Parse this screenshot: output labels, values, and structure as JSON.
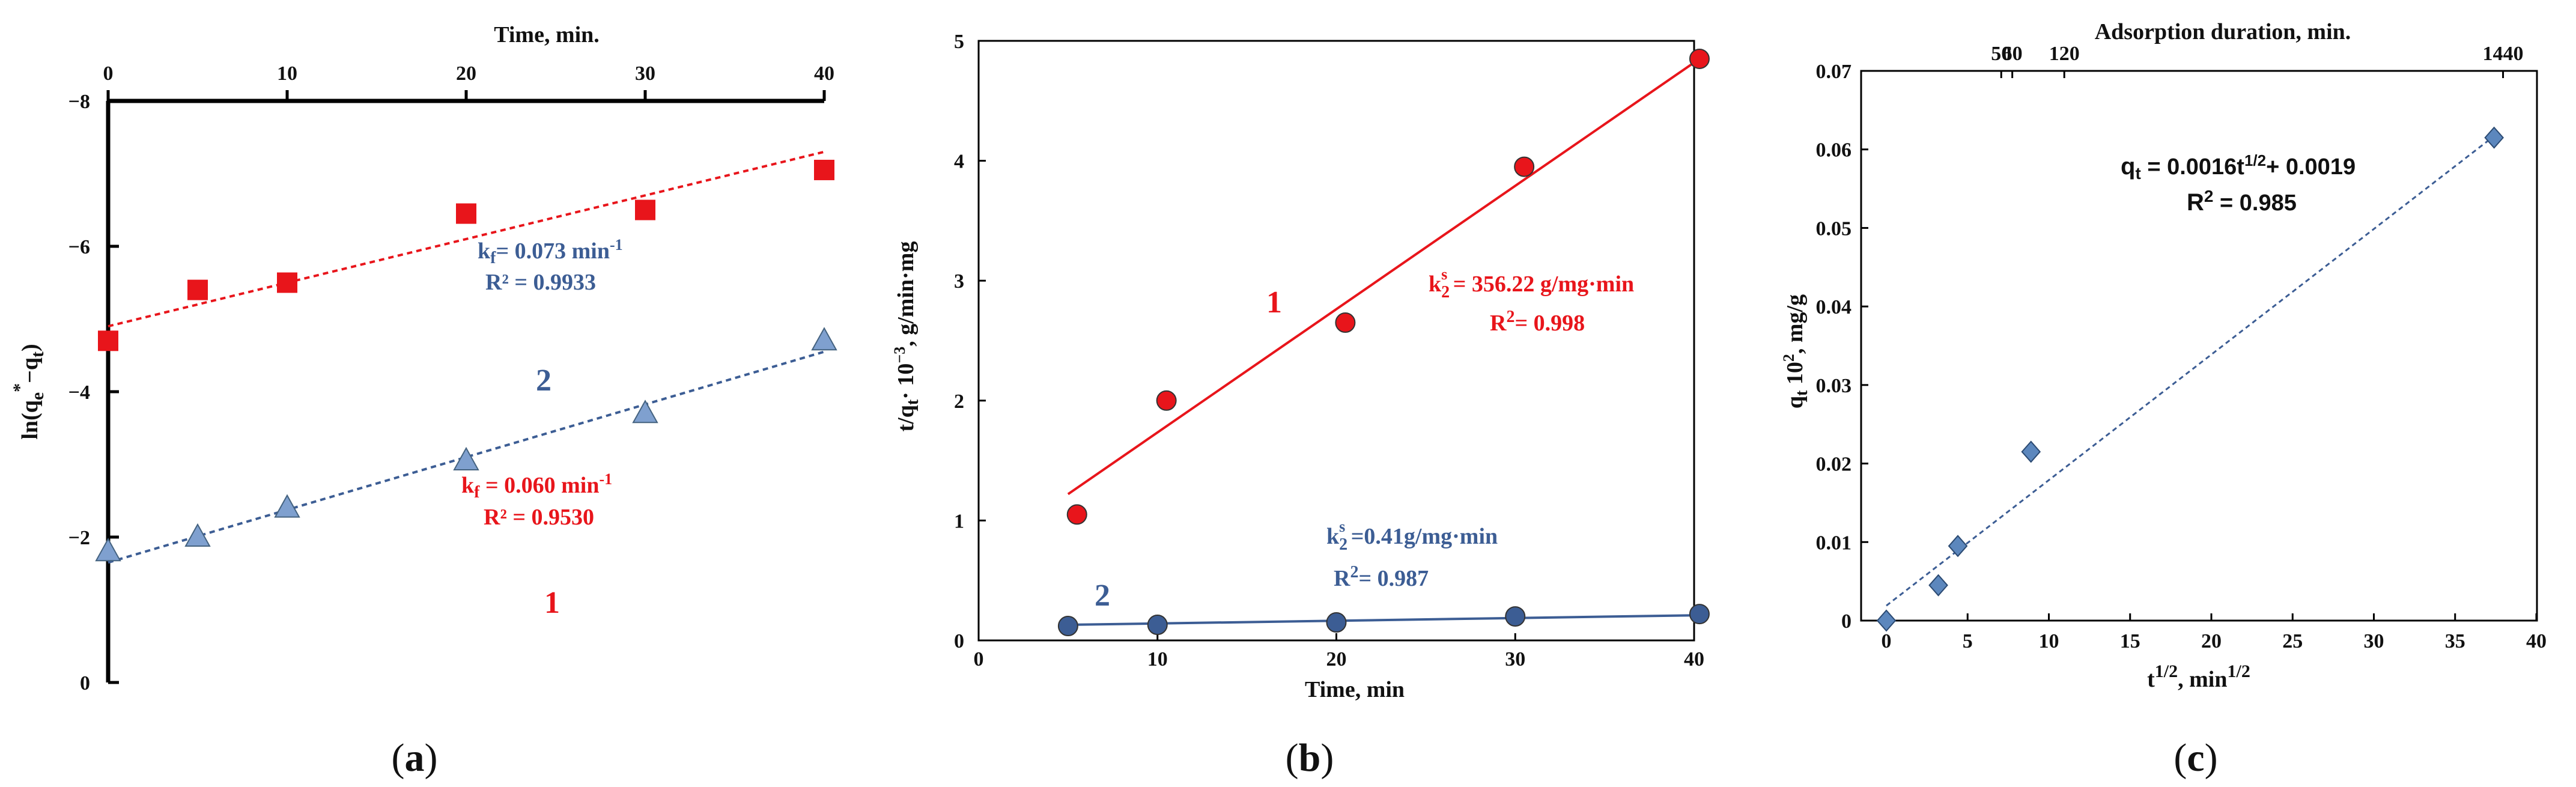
{
  "colors": {
    "red": "#e8151b",
    "blue": "#3c5d94",
    "lightblue": "#7fa0cf",
    "diamond": "#5c87bd",
    "axis": "#000000"
  },
  "chart_data": [
    {
      "panel": "(a)",
      "panel_letter": "a",
      "type": "scatter",
      "title": "",
      "x_top_label": "Time, min.",
      "ylabel_prefix": "ln(q",
      "ylabel_sub": "e",
      "ylabel_sup": "*",
      "ylabel_mid": "−q",
      "ylabel_sub2": "t",
      "ylabel_suffix": ")",
      "xlim": [
        0,
        40
      ],
      "ylim": [
        -8,
        0
      ],
      "x_ticks": [
        "0",
        "10",
        "20",
        "30",
        "40"
      ],
      "y_ticks": [
        "0",
        "−2",
        "−4",
        "−6",
        "−8"
      ],
      "series": [
        {
          "name": "1",
          "marker": "square",
          "x": [
            0,
            5,
            10,
            20,
            30,
            40
          ],
          "y": [
            -4.7,
            -5.4,
            -5.5,
            -6.45,
            -6.5,
            -7.05
          ],
          "fit": {
            "x": [
              0,
              40
            ],
            "y": [
              -4.9,
              -7.3
            ],
            "style": "dashed"
          },
          "label": "1",
          "annotation": {
            "k_prefix": "k",
            "k_sub": "f",
            "k_value": " = 0.060 min",
            "k_exp": "-1",
            "r2": "R² = 0.9530"
          }
        },
        {
          "name": "2",
          "marker": "triangle",
          "x": [
            0,
            5,
            10,
            20,
            30,
            40
          ],
          "y": [
            -1.8,
            -2.0,
            -2.4,
            -3.05,
            -3.7,
            -4.7
          ],
          "fit": {
            "x": [
              0,
              40
            ],
            "y": [
              -1.65,
              -4.55
            ],
            "style": "dashed"
          },
          "label": "2",
          "annotation": {
            "k_prefix": "k",
            "k_sub": "f",
            "k_value": "= 0.073 min",
            "k_exp": "-1",
            "r2": "R² = 0.9933"
          }
        }
      ]
    },
    {
      "panel": "(b)",
      "panel_letter": "b",
      "type": "scatter",
      "xlabel": "Time, min",
      "ylabel_prefix": "t/q",
      "ylabel_sub": "t",
      "ylabel_suffix": "· 10",
      "ylabel_sup": "−3",
      "ylabel_end": ", g/min·mg",
      "xlim": [
        0,
        40
      ],
      "ylim": [
        0,
        5
      ],
      "x_ticks": [
        "0",
        "10",
        "20",
        "30",
        "40"
      ],
      "y_ticks": [
        "0",
        "1",
        "2",
        "3",
        "4",
        "5"
      ],
      "series": [
        {
          "name": "1",
          "marker": "circle",
          "x": [
            5.5,
            10.5,
            20.5,
            30.5,
            40.3
          ],
          "y": [
            1.05,
            2.0,
            2.65,
            3.95,
            4.85
          ],
          "fit": {
            "x": [
              5,
              40.3
            ],
            "y": [
              1.22,
              4.85
            ],
            "style": "solid"
          },
          "label": "1",
          "annotation": {
            "k_prefix": "k",
            "k_sub": "2",
            "k_sup": "s",
            "k_value": " = 356.22 g/mg·min",
            "r2_prefix": "R",
            "r2_sup": "2",
            "r2_value": "= 0.998"
          }
        },
        {
          "name": "2",
          "marker": "circle",
          "x": [
            5,
            10,
            20,
            30,
            40.3
          ],
          "y": [
            0.12,
            0.13,
            0.15,
            0.2,
            0.22
          ],
          "fit": {
            "x": [
              5,
              40.3
            ],
            "y": [
              0.13,
              0.21
            ],
            "style": "solid"
          },
          "label": "2",
          "annotation": {
            "k_prefix": "k",
            "k_sub": "2",
            "k_sup": "s",
            "k_value": " =0.41g/mg·min",
            "r2_prefix": "R",
            "r2_sup": "2",
            "r2_value": "= 0.987"
          }
        }
      ]
    },
    {
      "panel": "(c)",
      "panel_letter": "c",
      "type": "scatter",
      "x_top_label": "Adsorption duration, min.",
      "top_ticks": [
        {
          "label": "50",
          "x": 7.07
        },
        {
          "label": "60",
          "x": 7.75
        },
        {
          "label": "120",
          "x": 10.95
        },
        {
          "label": "1440",
          "x": 37.95
        }
      ],
      "xlabel_prefix": "t",
      "xlabel_sup": "1/2",
      "xlabel_mid": ", min",
      "xlabel_sup2": "1/2",
      "ylabel_prefix": "q",
      "ylabel_sub": "t",
      "ylabel_mid": " 10",
      "ylabel_sup": "2",
      "ylabel_end": ", mg/g",
      "xlim": [
        0,
        40
      ],
      "ylim": [
        0,
        0.07
      ],
      "x_ticks": [
        "0",
        "5",
        "10",
        "15",
        "20",
        "25",
        "30",
        "35",
        "40"
      ],
      "y_ticks": [
        "0",
        "0.01",
        "0.02",
        "0.03",
        "0.04",
        "0.05",
        "0.06",
        "0.07"
      ],
      "series": [
        {
          "name": "data",
          "marker": "diamond",
          "x": [
            0,
            3.2,
            4.4,
            8.9,
            37.4
          ],
          "y": [
            0,
            0.0045,
            0.0095,
            0.0215,
            0.0615
          ],
          "fit": {
            "x": [
              0,
              37.4
            ],
            "y": [
              0.0019,
              0.0617
            ],
            "style": "dashed"
          },
          "annotation": {
            "eq_prefix": "q",
            "eq_sub": "t",
            "eq_mid": " = 0.0016t",
            "eq_sup": "1/2",
            "eq_end": "+ 0.0019",
            "r2_prefix": "R",
            "r2_sup": "2",
            "r2_value": " = 0.985"
          }
        }
      ]
    }
  ]
}
